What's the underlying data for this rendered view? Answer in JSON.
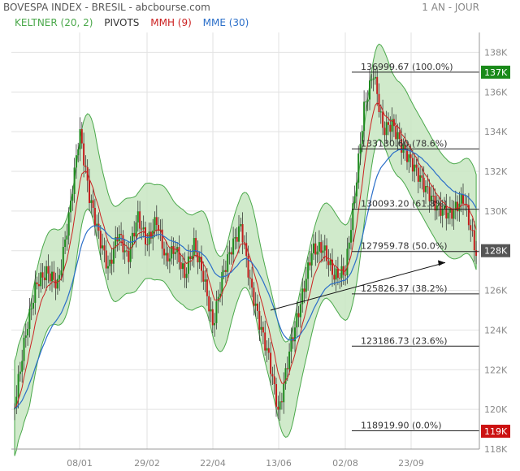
{
  "header": {
    "title": "BOVESPA INDEX - BRESIL - abcbourse.com",
    "period": "1 AN - JOUR"
  },
  "legend": [
    {
      "label": "KELTNER (20, 2)",
      "color": "#4aa84a"
    },
    {
      "label": "PIVOTS",
      "color": "#333333"
    },
    {
      "label": "MMH (9)",
      "color": "#cc2222"
    },
    {
      "label": "MME (30)",
      "color": "#2b6fc9"
    }
  ],
  "chart_data": {
    "type": "candlestick",
    "x_ticks": [
      "08/01",
      "29/02",
      "22/04",
      "13/06",
      "02/08",
      "23/09"
    ],
    "y_ticks": [
      "118K",
      "120K",
      "122K",
      "124K",
      "126K",
      "128K",
      "130K",
      "132K",
      "134K",
      "136K",
      "138K"
    ],
    "ylim": [
      118000,
      139000
    ],
    "close_path": [
      [
        "start",
        120500
      ],
      [
        "",
        124000
      ],
      [
        "",
        126500
      ],
      [
        "",
        127000
      ],
      [
        "",
        126200
      ],
      [
        "",
        129500
      ],
      [
        "08/01",
        133800
      ],
      [
        "",
        130500
      ],
      [
        "",
        128500
      ],
      [
        "",
        126800
      ],
      [
        "",
        128800
      ],
      [
        "",
        127500
      ],
      [
        "",
        129800
      ],
      [
        "29/02",
        128500
      ],
      [
        "",
        129800
      ],
      [
        "",
        127800
      ],
      [
        "",
        128400
      ],
      [
        "",
        127000
      ],
      [
        "",
        128500
      ],
      [
        "",
        126800
      ],
      [
        "22/04",
        124200
      ],
      [
        "",
        126600
      ],
      [
        "",
        128000
      ],
      [
        "",
        129000
      ],
      [
        "",
        126000
      ],
      [
        "",
        124000
      ],
      [
        "",
        122300
      ],
      [
        "13/06",
        119600
      ],
      [
        "",
        123000
      ],
      [
        "",
        125500
      ],
      [
        "",
        128200
      ],
      [
        "",
        128400
      ],
      [
        "",
        127000
      ],
      [
        "02/08",
        127200
      ],
      [
        "",
        131000
      ],
      [
        "",
        135300
      ],
      [
        "",
        137000
      ],
      [
        "",
        134000
      ],
      [
        "",
        134200
      ],
      [
        "",
        133000
      ],
      [
        "23/09",
        132200
      ],
      [
        "",
        131000
      ],
      [
        "",
        130000
      ],
      [
        "",
        129800
      ],
      [
        "",
        130800
      ],
      [
        "end",
        127900
      ]
    ],
    "band_half_width": 2400,
    "mme_lag": 6,
    "fibonacci": [
      {
        "value": 136999.67,
        "label": "136999.67  (100.0%)"
      },
      {
        "value": 133130.6,
        "label": "133130.60  (78.6%)"
      },
      {
        "value": 130093.2,
        "label": "130093.20  (61.8%)"
      },
      {
        "value": 127959.78,
        "label": "127959.78  (50.0%)"
      },
      {
        "value": 125826.37,
        "label": "125826.37  (38.2%)"
      },
      {
        "value": 123186.73,
        "label": "123186.73  (23.6%)"
      },
      {
        "value": 118919.9,
        "label": "118919.90  (0.0%)"
      }
    ],
    "trend_arrow": {
      "from": [
        "",
        125000
      ],
      "to": [
        "",
        127400
      ]
    },
    "price_tags": [
      {
        "label": "137K",
        "value": 137000,
        "color": "#1a8a1a"
      },
      {
        "label": "128K",
        "value": 128000,
        "color": "#555555"
      },
      {
        "label": "119K",
        "value": 118900,
        "color": "#cc1111"
      }
    ]
  }
}
